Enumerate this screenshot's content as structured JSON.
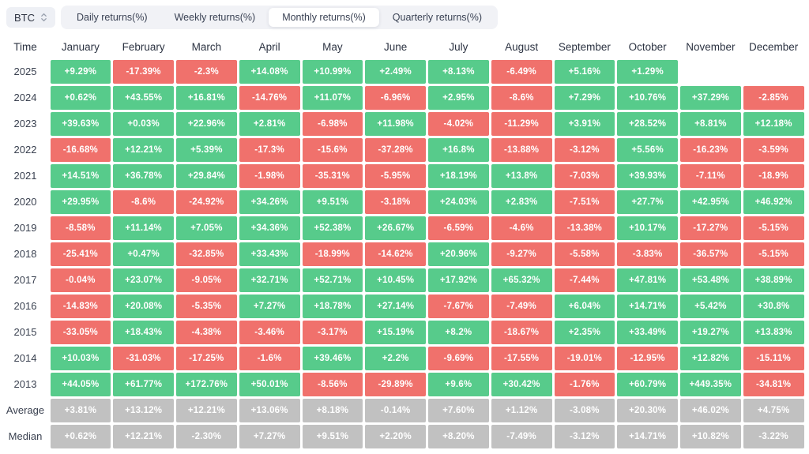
{
  "toolbar": {
    "symbol": "BTC",
    "symbol_icon": "updown-chevron-icon",
    "tabs": [
      {
        "label": "Daily returns(%)",
        "active": false
      },
      {
        "label": "Weekly returns(%)",
        "active": false
      },
      {
        "label": "Monthly returns(%)",
        "active": true
      },
      {
        "label": "Quarterly returns(%)",
        "active": false
      }
    ]
  },
  "colors": {
    "positive": "#57CB8B",
    "negative": "#F0716C",
    "neutral": "#C1C1C1",
    "tab_bar_bg": "#F1F2F6",
    "active_tab_bg": "#FFFFFF",
    "cell_text": "#FFFFFF",
    "label_text": "#3A4150"
  },
  "chart_data": {
    "type": "heatmap",
    "title": "BTC Monthly returns(%)",
    "columns": [
      "Time",
      "January",
      "February",
      "March",
      "April",
      "May",
      "June",
      "July",
      "August",
      "September",
      "October",
      "November",
      "December"
    ],
    "legend": {
      "positive": "green",
      "negative": "red",
      "aggregate": "gray"
    },
    "rows": [
      {
        "label": "2025",
        "values": [
          "+9.29%",
          "-17.39%",
          "-2.3%",
          "+14.08%",
          "+10.99%",
          "+2.49%",
          "+8.13%",
          "-6.49%",
          "+5.16%",
          "+1.29%",
          "",
          ""
        ],
        "tones": [
          "g",
          "r",
          "r",
          "g",
          "g",
          "g",
          "g",
          "r",
          "g",
          "g",
          "",
          ""
        ]
      },
      {
        "label": "2024",
        "values": [
          "+0.62%",
          "+43.55%",
          "+16.81%",
          "-14.76%",
          "+11.07%",
          "-6.96%",
          "+2.95%",
          "-8.6%",
          "+7.29%",
          "+10.76%",
          "+37.29%",
          "-2.85%"
        ],
        "tones": [
          "g",
          "g",
          "g",
          "r",
          "g",
          "r",
          "g",
          "r",
          "g",
          "g",
          "g",
          "r"
        ]
      },
      {
        "label": "2023",
        "values": [
          "+39.63%",
          "+0.03%",
          "+22.96%",
          "+2.81%",
          "-6.98%",
          "+11.98%",
          "-4.02%",
          "-11.29%",
          "+3.91%",
          "+28.52%",
          "+8.81%",
          "+12.18%"
        ],
        "tones": [
          "g",
          "g",
          "g",
          "g",
          "r",
          "g",
          "r",
          "r",
          "g",
          "g",
          "g",
          "g"
        ]
      },
      {
        "label": "2022",
        "values": [
          "-16.68%",
          "+12.21%",
          "+5.39%",
          "-17.3%",
          "-15.6%",
          "-37.28%",
          "+16.8%",
          "-13.88%",
          "-3.12%",
          "+5.56%",
          "-16.23%",
          "-3.59%"
        ],
        "tones": [
          "r",
          "g",
          "g",
          "r",
          "r",
          "r",
          "g",
          "r",
          "r",
          "g",
          "r",
          "r"
        ]
      },
      {
        "label": "2021",
        "values": [
          "+14.51%",
          "+36.78%",
          "+29.84%",
          "-1.98%",
          "-35.31%",
          "-5.95%",
          "+18.19%",
          "+13.8%",
          "-7.03%",
          "+39.93%",
          "-7.11%",
          "-18.9%"
        ],
        "tones": [
          "g",
          "g",
          "g",
          "r",
          "r",
          "r",
          "g",
          "g",
          "r",
          "g",
          "r",
          "r"
        ]
      },
      {
        "label": "2020",
        "values": [
          "+29.95%",
          "-8.6%",
          "-24.92%",
          "+34.26%",
          "+9.51%",
          "-3.18%",
          "+24.03%",
          "+2.83%",
          "-7.51%",
          "+27.7%",
          "+42.95%",
          "+46.92%"
        ],
        "tones": [
          "g",
          "r",
          "r",
          "g",
          "g",
          "r",
          "g",
          "g",
          "r",
          "g",
          "g",
          "g"
        ]
      },
      {
        "label": "2019",
        "values": [
          "-8.58%",
          "+11.14%",
          "+7.05%",
          "+34.36%",
          "+52.38%",
          "+26.67%",
          "-6.59%",
          "-4.6%",
          "-13.38%",
          "+10.17%",
          "-17.27%",
          "-5.15%"
        ],
        "tones": [
          "r",
          "g",
          "g",
          "g",
          "g",
          "g",
          "r",
          "r",
          "r",
          "g",
          "r",
          "r"
        ]
      },
      {
        "label": "2018",
        "values": [
          "-25.41%",
          "+0.47%",
          "-32.85%",
          "+33.43%",
          "-18.99%",
          "-14.62%",
          "+20.96%",
          "-9.27%",
          "-5.58%",
          "-3.83%",
          "-36.57%",
          "-5.15%"
        ],
        "tones": [
          "r",
          "g",
          "r",
          "g",
          "r",
          "r",
          "g",
          "r",
          "r",
          "r",
          "r",
          "r"
        ]
      },
      {
        "label": "2017",
        "values": [
          "-0.04%",
          "+23.07%",
          "-9.05%",
          "+32.71%",
          "+52.71%",
          "+10.45%",
          "+17.92%",
          "+65.32%",
          "-7.44%",
          "+47.81%",
          "+53.48%",
          "+38.89%"
        ],
        "tones": [
          "r",
          "g",
          "r",
          "g",
          "g",
          "g",
          "g",
          "g",
          "r",
          "g",
          "g",
          "g"
        ]
      },
      {
        "label": "2016",
        "values": [
          "-14.83%",
          "+20.08%",
          "-5.35%",
          "+7.27%",
          "+18.78%",
          "+27.14%",
          "-7.67%",
          "-7.49%",
          "+6.04%",
          "+14.71%",
          "+5.42%",
          "+30.8%"
        ],
        "tones": [
          "r",
          "g",
          "r",
          "g",
          "g",
          "g",
          "r",
          "r",
          "g",
          "g",
          "g",
          "g"
        ]
      },
      {
        "label": "2015",
        "values": [
          "-33.05%",
          "+18.43%",
          "-4.38%",
          "-3.46%",
          "-3.17%",
          "+15.19%",
          "+8.2%",
          "-18.67%",
          "+2.35%",
          "+33.49%",
          "+19.27%",
          "+13.83%"
        ],
        "tones": [
          "r",
          "g",
          "r",
          "r",
          "r",
          "g",
          "g",
          "r",
          "g",
          "g",
          "g",
          "g"
        ]
      },
      {
        "label": "2014",
        "values": [
          "+10.03%",
          "-31.03%",
          "-17.25%",
          "-1.6%",
          "+39.46%",
          "+2.2%",
          "-9.69%",
          "-17.55%",
          "-19.01%",
          "-12.95%",
          "+12.82%",
          "-15.11%"
        ],
        "tones": [
          "g",
          "r",
          "r",
          "r",
          "g",
          "g",
          "r",
          "r",
          "r",
          "r",
          "g",
          "r"
        ]
      },
      {
        "label": "2013",
        "values": [
          "+44.05%",
          "+61.77%",
          "+172.76%",
          "+50.01%",
          "-8.56%",
          "-29.89%",
          "+9.6%",
          "+30.42%",
          "-1.76%",
          "+60.79%",
          "+449.35%",
          "-34.81%"
        ],
        "tones": [
          "g",
          "g",
          "g",
          "g",
          "r",
          "r",
          "g",
          "g",
          "r",
          "g",
          "g",
          "r"
        ]
      },
      {
        "label": "Average",
        "values": [
          "+3.81%",
          "+13.12%",
          "+12.21%",
          "+13.06%",
          "+8.18%",
          "-0.14%",
          "+7.60%",
          "+1.12%",
          "-3.08%",
          "+20.30%",
          "+46.02%",
          "+4.75%"
        ],
        "tones": [
          "n",
          "n",
          "n",
          "n",
          "n",
          "n",
          "n",
          "n",
          "n",
          "n",
          "n",
          "n"
        ]
      },
      {
        "label": "Median",
        "values": [
          "+0.62%",
          "+12.21%",
          "-2.30%",
          "+7.27%",
          "+9.51%",
          "+2.20%",
          "+8.20%",
          "-7.49%",
          "-3.12%",
          "+14.71%",
          "+10.82%",
          "-3.22%"
        ],
        "tones": [
          "n",
          "n",
          "n",
          "n",
          "n",
          "n",
          "n",
          "n",
          "n",
          "n",
          "n",
          "n"
        ]
      }
    ]
  }
}
